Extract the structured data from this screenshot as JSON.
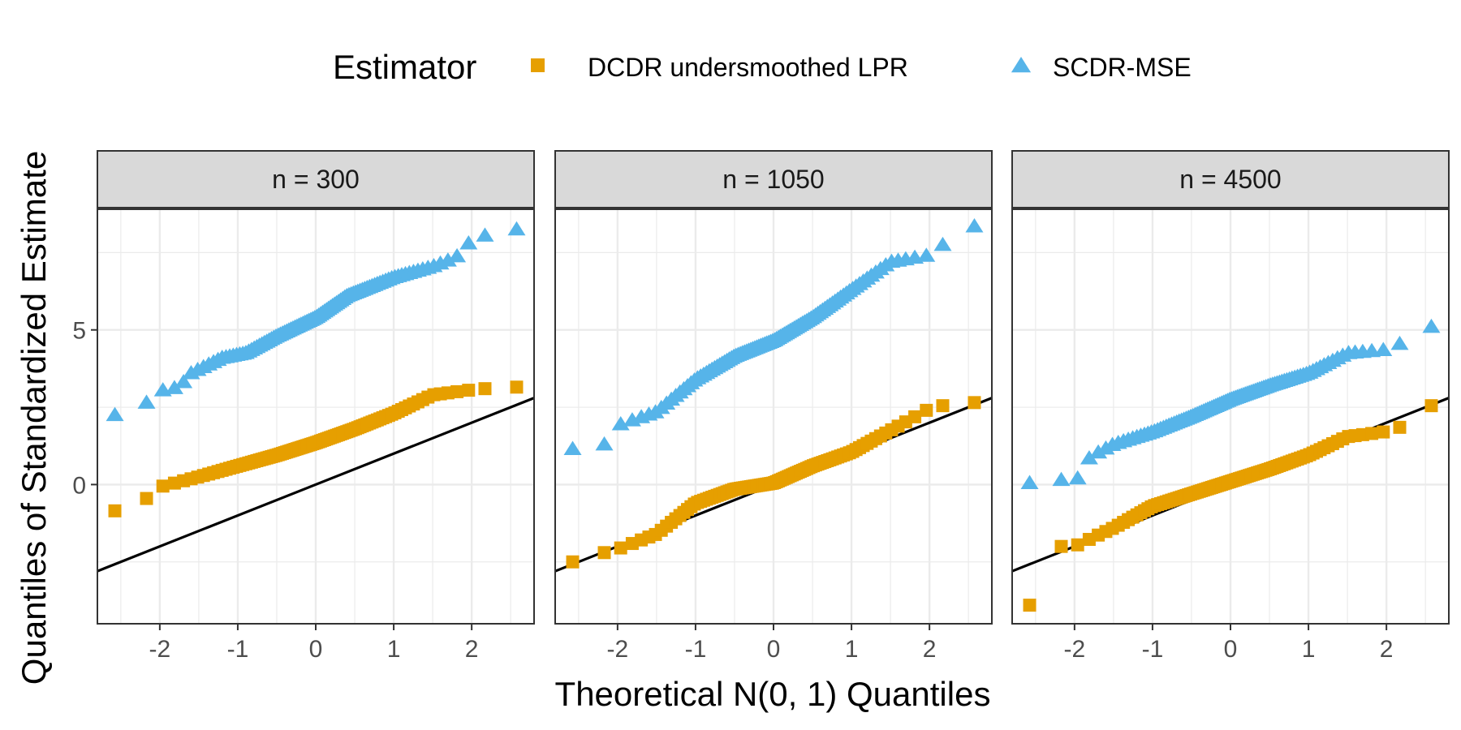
{
  "colors": {
    "dcdr": "#E69F00",
    "scdr": "#56B4E9",
    "reference_line": "#000000",
    "strip_fill": "#D9D9D9",
    "grid": "#EBEBEB",
    "panel_border": "#333333"
  },
  "legend": {
    "title": "Estimator",
    "items": [
      {
        "label": "DCDR undersmoothed LPR",
        "shape": "square",
        "color": "#E69F00"
      },
      {
        "label": "SCDR-MSE",
        "shape": "triangle",
        "color": "#56B4E9"
      }
    ]
  },
  "chart_data": {
    "type": "scatter",
    "kind": "faceted normal Q-Q plot with y = x reference line",
    "xlabel": "Theoretical N(0, 1) Quantiles",
    "ylabel": "Quantiles of Standardized Estimate",
    "xlim": [
      -2.8,
      2.8
    ],
    "ylim": [
      -4.5,
      8.9
    ],
    "x_ticks": [
      -2,
      -1,
      0,
      1,
      2
    ],
    "x_tick_labels": [
      "-2",
      "-1",
      "0",
      "1",
      "2"
    ],
    "y_ticks": [
      0,
      5
    ],
    "y_tick_labels": [
      "0",
      "5"
    ],
    "grid": true,
    "legend_position": "top",
    "reference_line": {
      "slope": 1,
      "intercept": 0
    },
    "sample_size": 100,
    "panels": [
      {
        "label": "n = 300",
        "series": [
          {
            "name": "DCDR undersmoothed LPR",
            "anchors": [
              [
                -2.576,
                -0.85
              ],
              [
                -2.17,
                -0.45
              ],
              [
                -1.96,
                -0.05
              ],
              [
                -1.5,
                0.25
              ],
              [
                -1.0,
                0.6
              ],
              [
                -0.5,
                0.95
              ],
              [
                0,
                1.35
              ],
              [
                0.5,
                1.8
              ],
              [
                1.0,
                2.3
              ],
              [
                1.5,
                2.9
              ],
              [
                1.96,
                3.05
              ],
              [
                2.17,
                3.1
              ],
              [
                2.576,
                3.15
              ]
            ]
          },
          {
            "name": "SCDR-MSE",
            "anchors": [
              [
                -2.576,
                2.25
              ],
              [
                -2.17,
                2.65
              ],
              [
                -1.96,
                3.05
              ],
              [
                -1.75,
                3.15
              ],
              [
                -1.6,
                3.6
              ],
              [
                -1.2,
                4.1
              ],
              [
                -0.9,
                4.25
              ],
              [
                -0.5,
                4.8
              ],
              [
                0,
                5.4
              ],
              [
                0.4,
                6.1
              ],
              [
                1.0,
                6.7
              ],
              [
                1.5,
                7.05
              ],
              [
                1.8,
                7.35
              ],
              [
                1.96,
                7.8
              ],
              [
                2.17,
                8.05
              ],
              [
                2.576,
                8.25
              ]
            ]
          }
        ]
      },
      {
        "label": "n = 1050",
        "series": [
          {
            "name": "DCDR undersmoothed LPR",
            "anchors": [
              [
                -2.576,
                -2.5
              ],
              [
                -2.17,
                -2.2
              ],
              [
                -1.96,
                -2.05
              ],
              [
                -1.5,
                -1.6
              ],
              [
                -1.0,
                -0.6
              ],
              [
                -0.5,
                -0.15
              ],
              [
                0,
                0.05
              ],
              [
                0.5,
                0.6
              ],
              [
                1.0,
                1.05
              ],
              [
                1.5,
                1.75
              ],
              [
                1.96,
                2.4
              ],
              [
                2.17,
                2.55
              ],
              [
                2.576,
                2.65
              ]
            ]
          },
          {
            "name": "SCDR-MSE",
            "anchors": [
              [
                -2.576,
                1.15
              ],
              [
                -2.17,
                1.3
              ],
              [
                -1.96,
                1.95
              ],
              [
                -1.5,
                2.35
              ],
              [
                -1.0,
                3.4
              ],
              [
                -0.5,
                4.15
              ],
              [
                0,
                4.65
              ],
              [
                0.5,
                5.4
              ],
              [
                1.0,
                6.3
              ],
              [
                1.5,
                7.2
              ],
              [
                1.96,
                7.4
              ],
              [
                2.17,
                7.75
              ],
              [
                2.576,
                8.35
              ]
            ]
          }
        ]
      },
      {
        "label": "n = 4500",
        "series": [
          {
            "name": "DCDR undersmoothed LPR",
            "anchors": [
              [
                -2.576,
                -3.9
              ],
              [
                -2.17,
                -2.0
              ],
              [
                -1.96,
                -1.95
              ],
              [
                -1.5,
                -1.4
              ],
              [
                -1.0,
                -0.7
              ],
              [
                -0.5,
                -0.3
              ],
              [
                0,
                0.1
              ],
              [
                0.5,
                0.5
              ],
              [
                1.0,
                0.95
              ],
              [
                1.5,
                1.55
              ],
              [
                1.96,
                1.7
              ],
              [
                2.17,
                1.85
              ],
              [
                2.576,
                2.55
              ]
            ]
          },
          {
            "name": "SCDR-MSE",
            "anchors": [
              [
                -2.576,
                0.05
              ],
              [
                -2.17,
                0.15
              ],
              [
                -1.96,
                0.2
              ],
              [
                -1.8,
                0.9
              ],
              [
                -1.5,
                1.3
              ],
              [
                -1.0,
                1.7
              ],
              [
                -0.5,
                2.2
              ],
              [
                0,
                2.75
              ],
              [
                0.5,
                3.2
              ],
              [
                1.0,
                3.6
              ],
              [
                1.5,
                4.25
              ],
              [
                1.96,
                4.35
              ],
              [
                2.17,
                4.55
              ],
              [
                2.576,
                5.1
              ]
            ]
          }
        ]
      }
    ]
  }
}
